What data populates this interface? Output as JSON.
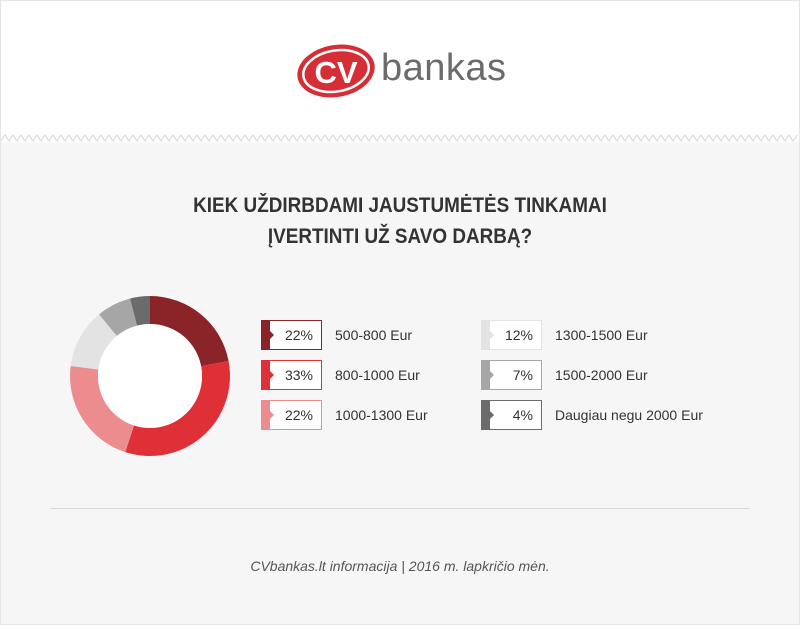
{
  "brand": {
    "logo_mark": "CV",
    "wordmark": "bankas",
    "accent_color": "#d62e36",
    "wordmark_color": "#6b6b6b"
  },
  "title": {
    "line1": "KIEK UŽDIRBDAMI JAUSTUMĖTĖS TINKAMAI",
    "line2": "ĮVERTINTI UŽ SAVO DARBĄ?"
  },
  "chart_data": {
    "type": "pie",
    "title": "KIEK UŽDIRBDAMI JAUSTUMĖTĖS TINKAMAI ĮVERTINTI UŽ SAVO DARBĄ?",
    "donut": true,
    "legend_position": "right",
    "slices": [
      {
        "label": "500-800 Eur",
        "value": 22,
        "display": "22%",
        "color": "#8b2428"
      },
      {
        "label": "800-1000 Eur",
        "value": 33,
        "display": "33%",
        "color": "#e03037"
      },
      {
        "label": "1000-1300 Eur",
        "value": 22,
        "display": "22%",
        "color": "#ec8c8e"
      },
      {
        "label": "1300-1500 Eur",
        "value": 12,
        "display": "12%",
        "color": "#e3e3e3"
      },
      {
        "label": "1500-2000 Eur",
        "value": 7,
        "display": "7%",
        "color": "#a6a6a6"
      },
      {
        "label": "Daugiau negu 2000 Eur",
        "value": 4,
        "display": "4%",
        "color": "#6b6b6b"
      }
    ]
  },
  "footer": {
    "source": "CVbankas.lt informacija | 2016 m. lapkričio mėn."
  }
}
